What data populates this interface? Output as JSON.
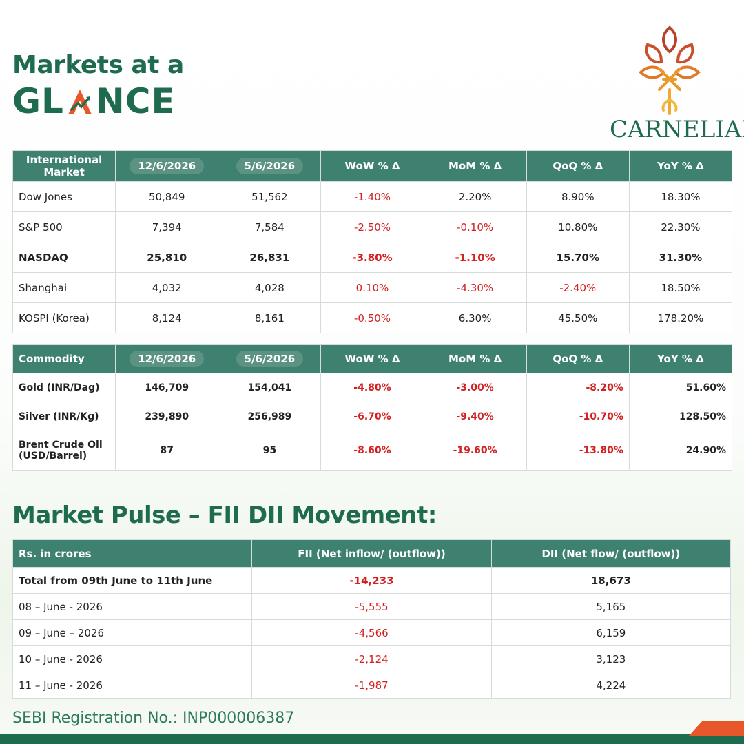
{
  "header": {
    "title_line1": "Markets at a",
    "title_line2_start": "GL",
    "title_line2_end": "NCE"
  },
  "logo": {
    "text": "CARNELIAN"
  },
  "international_table": {
    "headers": [
      "International Market",
      "12/6/2026",
      "5/6/2026",
      "WoW % Δ",
      "MoM % Δ",
      "QoQ % Δ",
      "YoY % Δ"
    ],
    "rows": [
      [
        "Dow Jones",
        "50,849",
        "51,562",
        "-1.40%",
        "2.20%",
        "8.90%",
        "18.30%"
      ],
      [
        "S&P 500",
        "7,394",
        "7,584",
        "-2.50%",
        "-0.10%",
        "10.80%",
        "22.30%"
      ],
      [
        "NASDAQ",
        "25,810",
        "26,831",
        "-3.80%",
        "-1.10%",
        "15.70%",
        "31.30%"
      ],
      [
        "Shanghai",
        "4,032",
        "4,028",
        "0.10%",
        "-4.30%",
        "-2.40%",
        "18.50%"
      ],
      [
        "KOSPI (Korea)",
        "8,124",
        "8,161",
        "-0.50%",
        "6.30%",
        "45.50%",
        "178.20%"
      ]
    ]
  },
  "commodity_table": {
    "headers": [
      "Commodity",
      "12/6/2026",
      "5/6/2026",
      "WoW % Δ",
      "MoM % Δ",
      "QoQ % Δ",
      "YoY % Δ"
    ],
    "rows": [
      [
        "Gold (INR/Dag)",
        "146,709",
        "154,041",
        "-4.80%",
        "-3.00%",
        "-8.20%",
        "51.60%"
      ],
      [
        "Silver (INR/Kg)",
        "239,890",
        "256,989",
        "-6.70%",
        "-9.40%",
        "-10.70%",
        "128.50%"
      ],
      [
        "Brent Crude Oil (USD/Barrel)",
        "87",
        "95",
        "-8.60%",
        "-19.60%",
        "-13.80%",
        "24.90%"
      ]
    ]
  },
  "pulse": {
    "title": "Market Pulse – FII DII Movement:",
    "headers": [
      "Rs. in crores",
      "FII (Net inflow/ (outflow))",
      "DII (Net flow/ (outflow))"
    ],
    "rows": [
      [
        "Total from 09th June to 11th June",
        "-14,233",
        "18,673"
      ],
      [
        "08 – June - 2026",
        "-5,555",
        "5,165"
      ],
      [
        "09 – June – 2026",
        "-4,566",
        "6,159"
      ],
      [
        "10 – June - 2026",
        "-2,124",
        "3,123"
      ],
      [
        "11 – June - 2026",
        "-1,987",
        "4,224"
      ]
    ]
  },
  "footer": {
    "registration": "SEBI Registration No.: INP000006387"
  }
}
